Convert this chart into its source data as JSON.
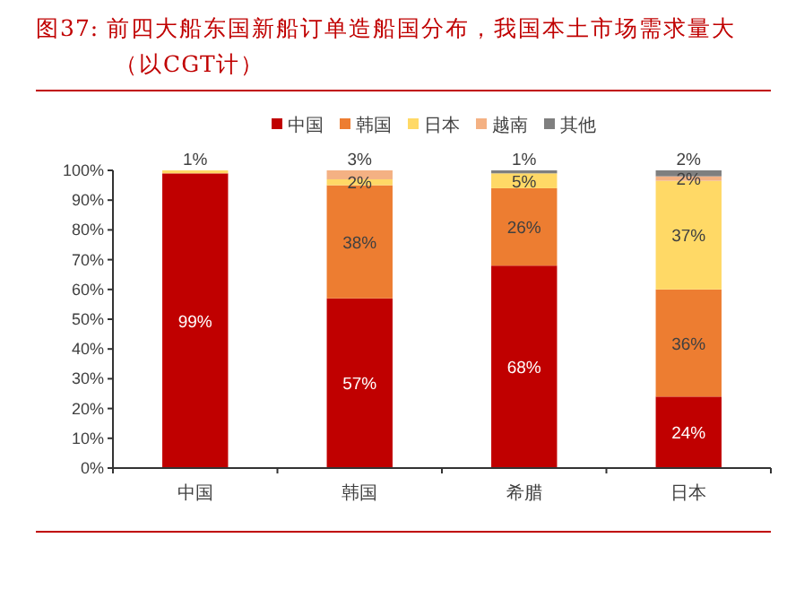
{
  "chart_data": {
    "type": "bar",
    "title": "图37:  前四大船东国新船订单造船国分布，我国本土市场需求量大（以CGT计）",
    "categories": [
      "中国",
      "韩国",
      "希腊",
      "日本"
    ],
    "stacked": true,
    "legend": "top",
    "ylim": [
      0,
      100
    ],
    "yticks": [
      {
        "value": 0,
        "label": "0%"
      },
      {
        "value": 10,
        "label": "10%"
      },
      {
        "value": 20,
        "label": "20%"
      },
      {
        "value": 30,
        "label": "30%"
      },
      {
        "value": 40,
        "label": "40%"
      },
      {
        "value": 50,
        "label": "50%"
      },
      {
        "value": 60,
        "label": "60%"
      },
      {
        "value": 70,
        "label": "70%"
      },
      {
        "value": 80,
        "label": "80%"
      },
      {
        "value": 90,
        "label": "90%"
      },
      {
        "value": 100,
        "label": "100%"
      }
    ],
    "series": [
      {
        "name": "中国",
        "color": "#c00000",
        "values": [
          99,
          57,
          68,
          24
        ],
        "value_labels": [
          "99%",
          "57%",
          "68%",
          "24%"
        ]
      },
      {
        "name": "韩国",
        "color": "#ed7d31",
        "values": [
          0,
          38,
          26,
          36
        ],
        "value_labels": [
          null,
          "38%",
          "26%",
          "36%"
        ]
      },
      {
        "name": "日本",
        "color": "#ffd966",
        "values": [
          1,
          2,
          5,
          36.5
        ],
        "value_labels": [
          "1%",
          "2%",
          "5%",
          "37%"
        ]
      },
      {
        "name": "越南",
        "color": "#f4b183",
        "values": [
          0,
          3,
          0,
          1.5
        ],
        "value_labels": [
          null,
          "3%",
          null,
          "2%"
        ]
      },
      {
        "name": "其他",
        "color": "#7f7f7f",
        "values": [
          0,
          0,
          1,
          2
        ],
        "value_labels": [
          null,
          null,
          "1%",
          "2%"
        ]
      }
    ]
  }
}
